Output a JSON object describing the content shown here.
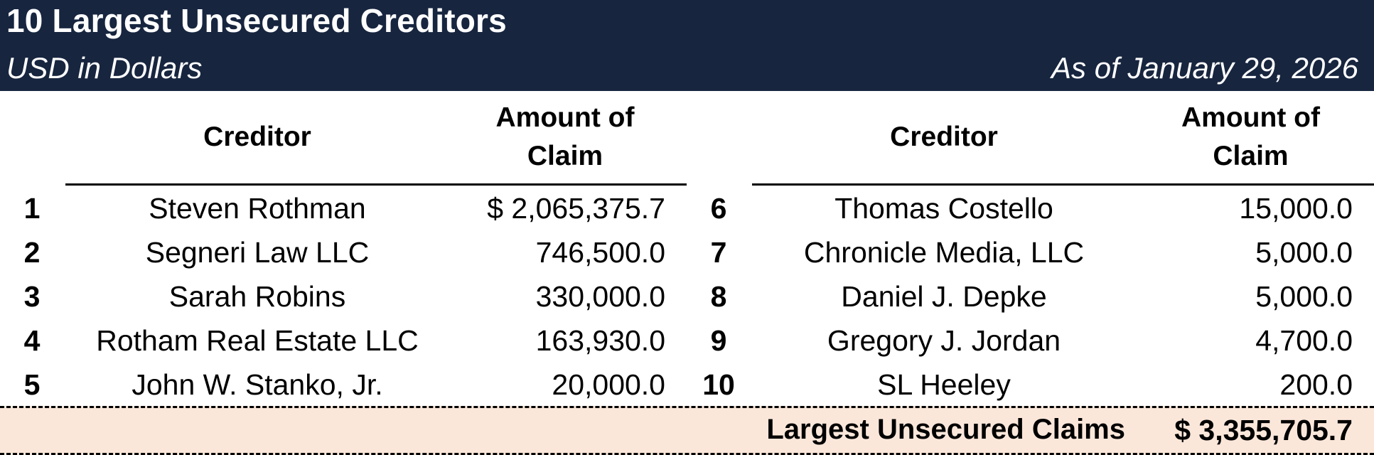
{
  "header": {
    "title": "10 Largest Unsecured Creditors",
    "units": "USD in Dollars",
    "as_of": "As of January 29, 2026",
    "background_color": "#17253f"
  },
  "columns": {
    "creditor": "Creditor",
    "amount_line1": "Amount of",
    "amount_line2": "Claim"
  },
  "left_table": {
    "rows": [
      {
        "num": "1",
        "creditor": "Steven Rothman",
        "amount": "$ 2,065,375.7"
      },
      {
        "num": "2",
        "creditor": "Segneri Law LLC",
        "amount": "746,500.0"
      },
      {
        "num": "3",
        "creditor": "Sarah Robins",
        "amount": "330,000.0"
      },
      {
        "num": "4",
        "creditor": "Rotham Real Estate LLC",
        "amount": "163,930.0"
      },
      {
        "num": "5",
        "creditor": "John W. Stanko, Jr.",
        "amount": "20,000.0"
      }
    ]
  },
  "right_table": {
    "rows": [
      {
        "num": "6",
        "creditor": "Thomas Costello",
        "amount": "15,000.0"
      },
      {
        "num": "7",
        "creditor": "Chronicle Media, LLC",
        "amount": "5,000.0"
      },
      {
        "num": "8",
        "creditor": "Daniel J. Depke",
        "amount": "5,000.0"
      },
      {
        "num": "9",
        "creditor": "Gregory J. Jordan",
        "amount": "4,700.0"
      },
      {
        "num": "10",
        "creditor": "SL Heeley",
        "amount": "200.0"
      }
    ]
  },
  "totals": {
    "label": "Largest Unsecured Claims",
    "value": "$ 3,355,705.7",
    "background_color": "#fbe7da"
  }
}
